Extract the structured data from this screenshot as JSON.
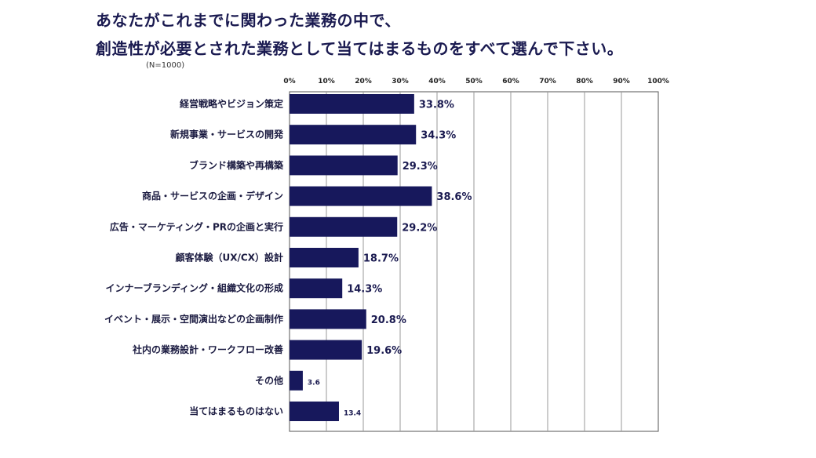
{
  "header": {
    "title_line1": "あなたがこれまでに関わった業務の中で、",
    "title_line2": "創造性が必要とされた業務として当てはまるものをすべて選んで下さい。",
    "sample_note": "(N=1000)"
  },
  "chart_data": {
    "type": "bar",
    "orientation": "horizontal",
    "unit": "%",
    "xlim": [
      0,
      100
    ],
    "ticks": [
      "0%",
      "10%",
      "20%",
      "30%",
      "40%",
      "50%",
      "60%",
      "70%",
      "80%",
      "90%",
      "100%"
    ],
    "tick_values": [
      0,
      10,
      20,
      30,
      40,
      50,
      60,
      70,
      80,
      90,
      100
    ],
    "categories": [
      "経営戦略やビジョン策定",
      "新規事業・サービスの開発",
      "ブランド構築や再構築",
      "商品・サービスの企画・デザイン",
      "広告・マーケティング・PRの企画と実行",
      "顧客体験（UX/CX）設計",
      "インナーブランディング・組織文化の形成",
      "イベント・展示・空間演出などの企画制作",
      "社内の業務設計・ワークフロー改善",
      "その他",
      "当てはまるものはない"
    ],
    "values": [
      33.8,
      34.3,
      29.3,
      38.6,
      29.2,
      18.7,
      14.3,
      20.8,
      19.6,
      3.6,
      13.4
    ],
    "labels": [
      "33.8%",
      "34.3%",
      "29.3%",
      "38.6%",
      "29.2%",
      "18.7%",
      "14.3%",
      "20.8%",
      "19.6%",
      "3.6",
      "13.4"
    ],
    "label_style": [
      "large",
      "large",
      "large",
      "large",
      "large",
      "large",
      "large",
      "large",
      "large",
      "small",
      "small"
    ],
    "grid": true,
    "bar_color": "#17185c",
    "grid_color": "#9a9a9a"
  }
}
